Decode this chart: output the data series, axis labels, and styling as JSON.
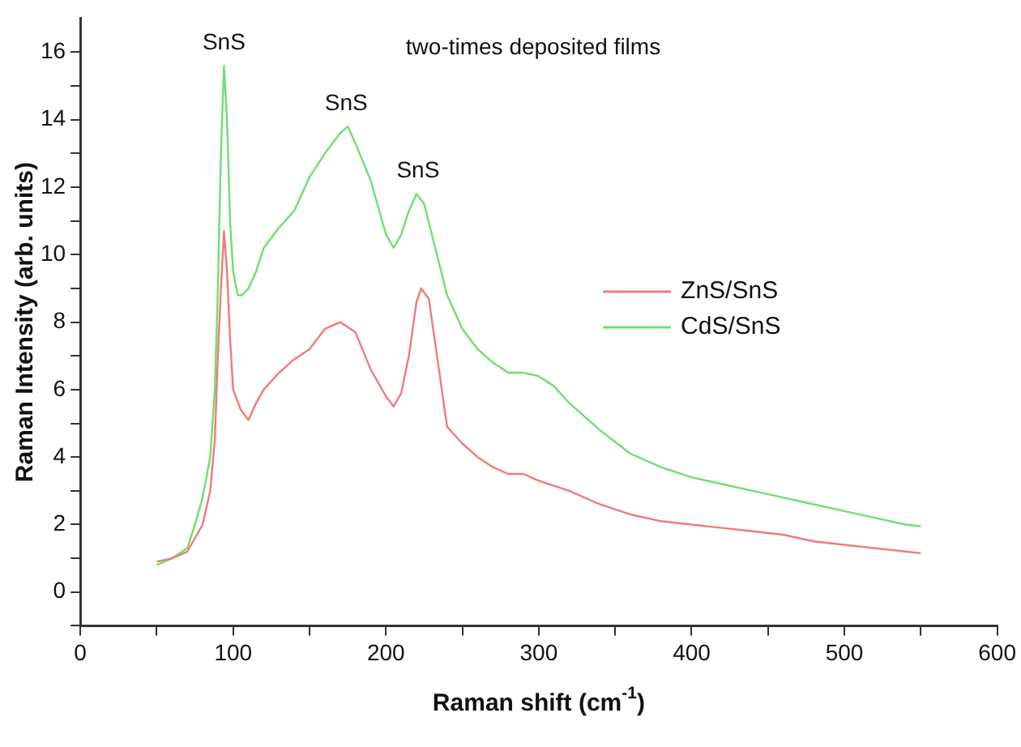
{
  "chart_data": {
    "type": "line",
    "xlabel": "Raman shift (cm$^{-1}$)",
    "ylabel": "Raman Intensity (arb. units)",
    "xlim": [
      0,
      600
    ],
    "ylim": [
      -1,
      17
    ],
    "xticks": [
      0,
      {
        "value": 50,
        "label": null
      },
      100,
      {
        "value": 150,
        "label": null
      },
      200,
      {
        "value": 250,
        "label": null
      },
      300,
      {
        "value": 350,
        "label": null
      },
      400,
      {
        "value": 450,
        "label": null
      },
      500,
      {
        "value": 550,
        "label": null
      },
      600
    ],
    "yticks": [
      {
        "value": -1,
        "label": null
      },
      0,
      {
        "value": 1,
        "label": null
      },
      2,
      {
        "value": 3,
        "label": null
      },
      4,
      {
        "value": 5,
        "label": null
      },
      6,
      {
        "value": 7,
        "label": null
      },
      8,
      {
        "value": 9,
        "label": null
      },
      10,
      {
        "value": 11,
        "label": null
      },
      12,
      {
        "value": 13,
        "label": null
      },
      14,
      {
        "value": 15,
        "label": null
      },
      16
    ],
    "grid": false,
    "legend": "right",
    "marker": "none",
    "line_style": "solid",
    "annotations": [
      "two-times deposited films",
      {
        "text": "SnS",
        "x": 94,
        "y": 15.6
      },
      {
        "text": "SnS",
        "x": 174,
        "y": 13.8
      },
      {
        "text": "SnS",
        "x": 221,
        "y": 11.8
      }
    ],
    "series": [
      {
        "name": "ZnS/SnS",
        "color": "#f07a7a",
        "x": [
          50,
          60,
          70,
          80,
          85,
          88,
          90,
          92,
          94,
          96,
          98,
          100,
          105,
          110,
          115,
          120,
          130,
          140,
          150,
          160,
          170,
          180,
          190,
          200,
          205,
          210,
          215,
          220,
          223,
          228,
          235,
          240,
          250,
          260,
          270,
          280,
          290,
          300,
          320,
          340,
          360,
          380,
          400,
          420,
          440,
          460,
          480,
          500,
          520,
          540,
          550
        ],
        "values": [
          0.9,
          1.0,
          1.2,
          2.0,
          3.0,
          4.5,
          7,
          9,
          10.7,
          9.5,
          7.5,
          6.0,
          5.4,
          5.1,
          5.6,
          6.0,
          6.5,
          6.9,
          7.2,
          7.8,
          8.0,
          7.7,
          6.6,
          5.8,
          5.5,
          5.9,
          7.0,
          8.6,
          9.0,
          8.7,
          6.5,
          4.9,
          4.4,
          4.0,
          3.7,
          3.5,
          3.5,
          3.3,
          3.0,
          2.6,
          2.3,
          2.1,
          2.0,
          1.9,
          1.8,
          1.7,
          1.5,
          1.4,
          1.3,
          1.2,
          1.15
        ]
      },
      {
        "name": "CdS/SnS",
        "color": "#6ee06e",
        "x": [
          50,
          60,
          70,
          75,
          80,
          85,
          88,
          90,
          92,
          94,
          96,
          98,
          100,
          103,
          106,
          110,
          115,
          120,
          130,
          140,
          150,
          160,
          170,
          175,
          180,
          190,
          200,
          205,
          210,
          215,
          220,
          225,
          230,
          240,
          250,
          260,
          270,
          280,
          290,
          300,
          310,
          320,
          340,
          360,
          380,
          400,
          420,
          440,
          460,
          480,
          500,
          520,
          540,
          550
        ],
        "values": [
          0.8,
          1.0,
          1.3,
          2.0,
          2.8,
          4.0,
          6,
          9,
          13,
          15.6,
          14,
          11,
          9.5,
          8.8,
          8.8,
          9.0,
          9.5,
          10.2,
          10.8,
          11.3,
          12.3,
          13.0,
          13.6,
          13.8,
          13.3,
          12.2,
          10.6,
          10.2,
          10.6,
          11.3,
          11.8,
          11.5,
          10.6,
          8.8,
          7.8,
          7.2,
          6.8,
          6.5,
          6.5,
          6.4,
          6.1,
          5.6,
          4.8,
          4.1,
          3.7,
          3.4,
          3.2,
          3.0,
          2.8,
          2.6,
          2.4,
          2.2,
          2.0,
          1.95
        ]
      }
    ]
  }
}
